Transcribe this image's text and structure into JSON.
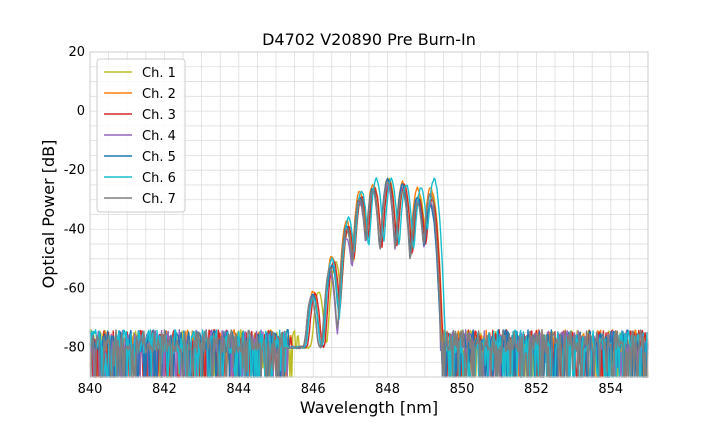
{
  "chart_data": {
    "type": "line",
    "title": "D4702 V20890 Pre Burn-In",
    "xlabel": "Wavelength [nm]",
    "ylabel": "Optical Power [dB]",
    "xlim": [
      840,
      855
    ],
    "ylim": [
      -90,
      20
    ],
    "xticks": [
      840,
      842,
      844,
      846,
      848,
      850,
      852,
      854
    ],
    "yticks": [
      20,
      0,
      -20,
      -40,
      -60,
      -80
    ],
    "grid": true,
    "legend_position": "top-left",
    "noise_floor_db": -80,
    "series": [
      {
        "name": "Ch. 1",
        "color": "#bcbd22",
        "peaks": [
          [
            846.15,
            -61
          ],
          [
            846.6,
            -51
          ],
          [
            846.95,
            -40
          ],
          [
            847.3,
            -29
          ],
          [
            847.65,
            -26
          ],
          [
            848.05,
            -23
          ],
          [
            848.45,
            -25
          ],
          [
            848.85,
            -28
          ],
          [
            849.2,
            -28
          ]
        ]
      },
      {
        "name": "Ch. 2",
        "color": "#ff7f0e",
        "peaks": [
          [
            846.0,
            -61
          ],
          [
            846.5,
            -49
          ],
          [
            846.9,
            -37
          ],
          [
            847.25,
            -27
          ],
          [
            847.6,
            -25
          ],
          [
            848.0,
            -23
          ],
          [
            848.4,
            -24
          ],
          [
            848.8,
            -26
          ],
          [
            849.15,
            -26
          ]
        ]
      },
      {
        "name": "Ch. 3",
        "color": "#d62728",
        "peaks": [
          [
            846.05,
            -62
          ],
          [
            846.55,
            -51
          ],
          [
            846.95,
            -39
          ],
          [
            847.3,
            -29
          ],
          [
            847.65,
            -26
          ],
          [
            848.05,
            -24
          ],
          [
            848.45,
            -25
          ],
          [
            848.85,
            -30
          ],
          [
            849.2,
            -30
          ]
        ]
      },
      {
        "name": "Ch. 4",
        "color": "#9467bd",
        "peaks": [
          [
            845.95,
            -63
          ],
          [
            846.45,
            -55
          ],
          [
            846.9,
            -43
          ],
          [
            847.25,
            -31
          ],
          [
            847.6,
            -27
          ],
          [
            848.0,
            -25
          ],
          [
            848.4,
            -26
          ],
          [
            848.8,
            -30
          ],
          [
            849.15,
            -31
          ]
        ]
      },
      {
        "name": "Ch. 5",
        "color": "#1f77b4",
        "peaks": [
          [
            846.0,
            -62
          ],
          [
            846.5,
            -52
          ],
          [
            846.9,
            -39
          ],
          [
            847.25,
            -29
          ],
          [
            847.6,
            -26
          ],
          [
            848.0,
            -23
          ],
          [
            848.4,
            -25
          ],
          [
            848.8,
            -29
          ],
          [
            849.15,
            -32
          ]
        ]
      },
      {
        "name": "Ch. 6",
        "color": "#17becf",
        "peaks": [
          [
            846.0,
            -63
          ],
          [
            846.5,
            -50
          ],
          [
            846.95,
            -36
          ],
          [
            847.3,
            -27
          ],
          [
            847.7,
            -23
          ],
          [
            848.1,
            -23
          ],
          [
            848.5,
            -25
          ],
          [
            848.9,
            -26
          ],
          [
            849.25,
            -23
          ]
        ]
      },
      {
        "name": "Ch. 7",
        "color": "#7f7f7f",
        "peaks": [
          [
            845.95,
            -63
          ],
          [
            846.45,
            -53
          ],
          [
            846.9,
            -40
          ],
          [
            847.25,
            -30
          ],
          [
            847.6,
            -27
          ],
          [
            848.0,
            -24
          ],
          [
            848.4,
            -27
          ],
          [
            848.8,
            -31
          ],
          [
            849.15,
            -28
          ]
        ]
      }
    ]
  }
}
